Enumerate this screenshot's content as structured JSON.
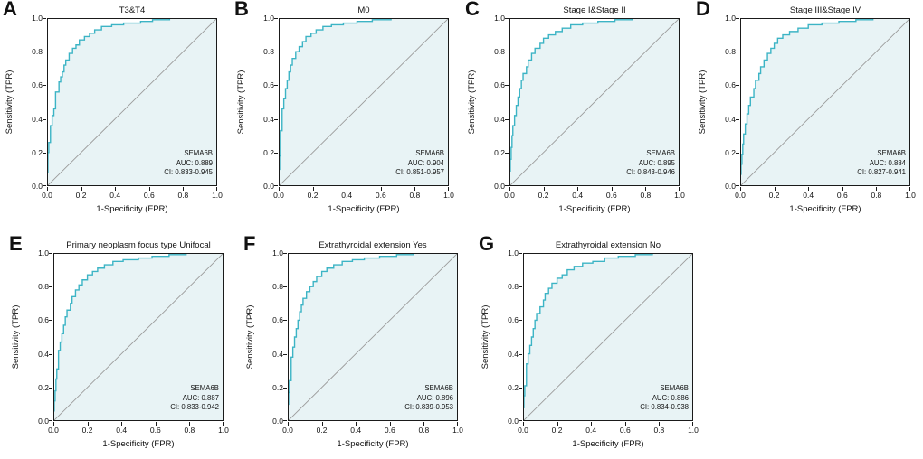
{
  "figure": {
    "xlabel": "1-Specificity (FPR)",
    "ylabel": "Sensitivity (TPR)",
    "ticks": [
      "0.0",
      "0.2",
      "0.4",
      "0.6",
      "0.8",
      "1.0"
    ],
    "axis_range": [
      0,
      1
    ],
    "colors": {
      "curve": "#3cb4c5",
      "fill": "#e8f3f5",
      "diagonal": "#9b9b9b",
      "frame": "#1a1a1a"
    }
  },
  "chart_data": [
    {
      "type": "line",
      "panel": "A",
      "title": "T3&T4",
      "xlabel": "1-Specificity (FPR)",
      "ylabel": "Sensitivity (TPR)",
      "xlim": [
        0,
        1
      ],
      "ylim": [
        0,
        1
      ],
      "annotation": {
        "gene": "SEMA6B",
        "auc": "AUC: 0.889",
        "ci": "CI: 0.833-0.945"
      },
      "auc_value": 0.889,
      "ci_range": [
        0.833,
        0.945
      ],
      "roc": [
        [
          0,
          0
        ],
        [
          0.005,
          0.08
        ],
        [
          0.005,
          0.14
        ],
        [
          0.01,
          0.2
        ],
        [
          0.02,
          0.26
        ],
        [
          0.02,
          0.32
        ],
        [
          0.03,
          0.36
        ],
        [
          0.04,
          0.42
        ],
        [
          0.05,
          0.46
        ],
        [
          0.05,
          0.52
        ],
        [
          0.07,
          0.56
        ],
        [
          0.08,
          0.62
        ],
        [
          0.09,
          0.65
        ],
        [
          0.1,
          0.68
        ],
        [
          0.11,
          0.72
        ],
        [
          0.13,
          0.75
        ],
        [
          0.15,
          0.79
        ],
        [
          0.17,
          0.82
        ],
        [
          0.19,
          0.84
        ],
        [
          0.22,
          0.87
        ],
        [
          0.25,
          0.89
        ],
        [
          0.28,
          0.91
        ],
        [
          0.32,
          0.93
        ],
        [
          0.38,
          0.95
        ],
        [
          0.45,
          0.96
        ],
        [
          0.55,
          0.97
        ],
        [
          0.62,
          0.98
        ],
        [
          0.72,
          0.99
        ],
        [
          0.82,
          1
        ],
        [
          1,
          1
        ]
      ]
    },
    {
      "type": "line",
      "panel": "B",
      "title": "M0",
      "xlabel": "1-Specificity (FPR)",
      "ylabel": "Sensitivity (TPR)",
      "xlim": [
        0,
        1
      ],
      "ylim": [
        0,
        1
      ],
      "annotation": {
        "gene": "SEMA6B",
        "auc": "AUC: 0.904",
        "ci": "CI: 0.851-0.957"
      },
      "auc_value": 0.904,
      "ci_range": [
        0.851,
        0.957
      ],
      "roc": [
        [
          0,
          0
        ],
        [
          0.005,
          0.1
        ],
        [
          0.01,
          0.18
        ],
        [
          0.01,
          0.26
        ],
        [
          0.02,
          0.33
        ],
        [
          0.02,
          0.4
        ],
        [
          0.03,
          0.46
        ],
        [
          0.04,
          0.52
        ],
        [
          0.05,
          0.58
        ],
        [
          0.06,
          0.63
        ],
        [
          0.07,
          0.68
        ],
        [
          0.08,
          0.72
        ],
        [
          0.1,
          0.76
        ],
        [
          0.12,
          0.8
        ],
        [
          0.14,
          0.83
        ],
        [
          0.16,
          0.86
        ],
        [
          0.19,
          0.89
        ],
        [
          0.22,
          0.91
        ],
        [
          0.26,
          0.93
        ],
        [
          0.31,
          0.95
        ],
        [
          0.38,
          0.96
        ],
        [
          0.46,
          0.97
        ],
        [
          0.55,
          0.98
        ],
        [
          0.66,
          0.99
        ],
        [
          0.78,
          1
        ],
        [
          1,
          1
        ]
      ]
    },
    {
      "type": "line",
      "panel": "C",
      "title": "Stage I&Stage II",
      "xlabel": "1-Specificity (FPR)",
      "ylabel": "Sensitivity (TPR)",
      "xlim": [
        0,
        1
      ],
      "ylim": [
        0,
        1
      ],
      "annotation": {
        "gene": "SEMA6B",
        "auc": "AUC: 0.895",
        "ci": "CI: 0.843-0.946"
      },
      "auc_value": 0.895,
      "ci_range": [
        0.843,
        0.946
      ],
      "roc": [
        [
          0,
          0
        ],
        [
          0.005,
          0.09
        ],
        [
          0.01,
          0.16
        ],
        [
          0.015,
          0.23
        ],
        [
          0.02,
          0.3
        ],
        [
          0.03,
          0.36
        ],
        [
          0.04,
          0.42
        ],
        [
          0.05,
          0.48
        ],
        [
          0.06,
          0.53
        ],
        [
          0.07,
          0.58
        ],
        [
          0.08,
          0.63
        ],
        [
          0.1,
          0.67
        ],
        [
          0.11,
          0.71
        ],
        [
          0.13,
          0.75
        ],
        [
          0.15,
          0.79
        ],
        [
          0.18,
          0.82
        ],
        [
          0.2,
          0.85
        ],
        [
          0.23,
          0.88
        ],
        [
          0.27,
          0.9
        ],
        [
          0.31,
          0.92
        ],
        [
          0.36,
          0.94
        ],
        [
          0.43,
          0.96
        ],
        [
          0.52,
          0.97
        ],
        [
          0.62,
          0.98
        ],
        [
          0.72,
          0.99
        ],
        [
          0.84,
          1
        ],
        [
          1,
          1
        ]
      ]
    },
    {
      "type": "line",
      "panel": "D",
      "title": "Stage III&Stage IV",
      "xlabel": "1-Specificity (FPR)",
      "ylabel": "Sensitivity (TPR)",
      "xlim": [
        0,
        1
      ],
      "ylim": [
        0,
        1
      ],
      "annotation": {
        "gene": "SEMA6B",
        "auc": "AUC: 0.884",
        "ci": "CI: 0.827-0.941"
      },
      "auc_value": 0.884,
      "ci_range": [
        0.827,
        0.941
      ],
      "roc": [
        [
          0,
          0
        ],
        [
          0.005,
          0.07
        ],
        [
          0.01,
          0.13
        ],
        [
          0.015,
          0.19
        ],
        [
          0.02,
          0.25
        ],
        [
          0.03,
          0.31
        ],
        [
          0.04,
          0.37
        ],
        [
          0.05,
          0.43
        ],
        [
          0.06,
          0.48
        ],
        [
          0.08,
          0.53
        ],
        [
          0.09,
          0.58
        ],
        [
          0.11,
          0.63
        ],
        [
          0.12,
          0.67
        ],
        [
          0.14,
          0.71
        ],
        [
          0.16,
          0.75
        ],
        [
          0.18,
          0.79
        ],
        [
          0.2,
          0.82
        ],
        [
          0.22,
          0.85
        ],
        [
          0.25,
          0.88
        ],
        [
          0.29,
          0.9
        ],
        [
          0.34,
          0.92
        ],
        [
          0.4,
          0.94
        ],
        [
          0.48,
          0.96
        ],
        [
          0.58,
          0.97
        ],
        [
          0.68,
          0.98
        ],
        [
          0.78,
          0.99
        ],
        [
          0.88,
          1
        ],
        [
          1,
          1
        ]
      ]
    },
    {
      "type": "line",
      "panel": "E",
      "title": "Primary neoplasm focus type Unifocal",
      "xlabel": "1-Specificity (FPR)",
      "ylabel": "Sensitivity (TPR)",
      "xlim": [
        0,
        1
      ],
      "ylim": [
        0,
        1
      ],
      "annotation": {
        "gene": "SEMA6B",
        "auc": "AUC: 0.887",
        "ci": "CI: 0.833-0.942"
      },
      "auc_value": 0.887,
      "ci_range": [
        0.833,
        0.942
      ],
      "roc": [
        [
          0,
          0
        ],
        [
          0.005,
          0.06
        ],
        [
          0.01,
          0.12
        ],
        [
          0.015,
          0.18
        ],
        [
          0.02,
          0.25
        ],
        [
          0.03,
          0.31
        ],
        [
          0.03,
          0.37
        ],
        [
          0.04,
          0.42
        ],
        [
          0.05,
          0.47
        ],
        [
          0.06,
          0.52
        ],
        [
          0.07,
          0.57
        ],
        [
          0.08,
          0.62
        ],
        [
          0.1,
          0.66
        ],
        [
          0.11,
          0.7
        ],
        [
          0.13,
          0.74
        ],
        [
          0.15,
          0.78
        ],
        [
          0.17,
          0.81
        ],
        [
          0.2,
          0.84
        ],
        [
          0.23,
          0.87
        ],
        [
          0.26,
          0.89
        ],
        [
          0.3,
          0.91
        ],
        [
          0.35,
          0.93
        ],
        [
          0.41,
          0.95
        ],
        [
          0.5,
          0.96
        ],
        [
          0.58,
          0.97
        ],
        [
          0.68,
          0.98
        ],
        [
          0.78,
          0.99
        ],
        [
          0.88,
          1
        ],
        [
          1,
          1
        ]
      ]
    },
    {
      "type": "line",
      "panel": "F",
      "title": "Extrathyroidal extension Yes",
      "xlabel": "1-Specificity (FPR)",
      "ylabel": "Sensitivity (TPR)",
      "xlim": [
        0,
        1
      ],
      "ylim": [
        0,
        1
      ],
      "annotation": {
        "gene": "SEMA6B",
        "auc": "AUC: 0.896",
        "ci": "CI: 0.839-0.953"
      },
      "auc_value": 0.896,
      "ci_range": [
        0.839,
        0.953
      ],
      "roc": [
        [
          0,
          0
        ],
        [
          0.005,
          0.1
        ],
        [
          0.01,
          0.17
        ],
        [
          0.02,
          0.24
        ],
        [
          0.02,
          0.31
        ],
        [
          0.03,
          0.38
        ],
        [
          0.04,
          0.44
        ],
        [
          0.05,
          0.5
        ],
        [
          0.06,
          0.55
        ],
        [
          0.07,
          0.6
        ],
        [
          0.08,
          0.65
        ],
        [
          0.09,
          0.69
        ],
        [
          0.11,
          0.73
        ],
        [
          0.13,
          0.77
        ],
        [
          0.15,
          0.8
        ],
        [
          0.17,
          0.83
        ],
        [
          0.2,
          0.86
        ],
        [
          0.23,
          0.89
        ],
        [
          0.27,
          0.91
        ],
        [
          0.32,
          0.93
        ],
        [
          0.38,
          0.95
        ],
        [
          0.45,
          0.96
        ],
        [
          0.54,
          0.97
        ],
        [
          0.64,
          0.98
        ],
        [
          0.74,
          0.99
        ],
        [
          0.85,
          1
        ],
        [
          1,
          1
        ]
      ]
    },
    {
      "type": "line",
      "panel": "G",
      "title": "Extrathyroidal extension No",
      "xlabel": "1-Specificity (FPR)",
      "ylabel": "Sensitivity (TPR)",
      "xlim": [
        0,
        1
      ],
      "ylim": [
        0,
        1
      ],
      "annotation": {
        "gene": "SEMA6B",
        "auc": "AUC: 0.886",
        "ci": "CI: 0.834-0.938"
      },
      "auc_value": 0.886,
      "ci_range": [
        0.834,
        0.938
      ],
      "roc": [
        [
          0,
          0
        ],
        [
          0.005,
          0.08
        ],
        [
          0.01,
          0.15
        ],
        [
          0.02,
          0.21
        ],
        [
          0.02,
          0.28
        ],
        [
          0.03,
          0.34
        ],
        [
          0.04,
          0.4
        ],
        [
          0.05,
          0.45
        ],
        [
          0.06,
          0.5
        ],
        [
          0.07,
          0.55
        ],
        [
          0.08,
          0.6
        ],
        [
          0.1,
          0.64
        ],
        [
          0.12,
          0.68
        ],
        [
          0.13,
          0.72
        ],
        [
          0.15,
          0.76
        ],
        [
          0.17,
          0.79
        ],
        [
          0.2,
          0.82
        ],
        [
          0.23,
          0.85
        ],
        [
          0.26,
          0.87
        ],
        [
          0.3,
          0.9
        ],
        [
          0.35,
          0.92
        ],
        [
          0.41,
          0.94
        ],
        [
          0.48,
          0.95
        ],
        [
          0.56,
          0.97
        ],
        [
          0.66,
          0.98
        ],
        [
          0.76,
          0.99
        ],
        [
          0.87,
          1
        ],
        [
          1,
          1
        ]
      ]
    }
  ]
}
